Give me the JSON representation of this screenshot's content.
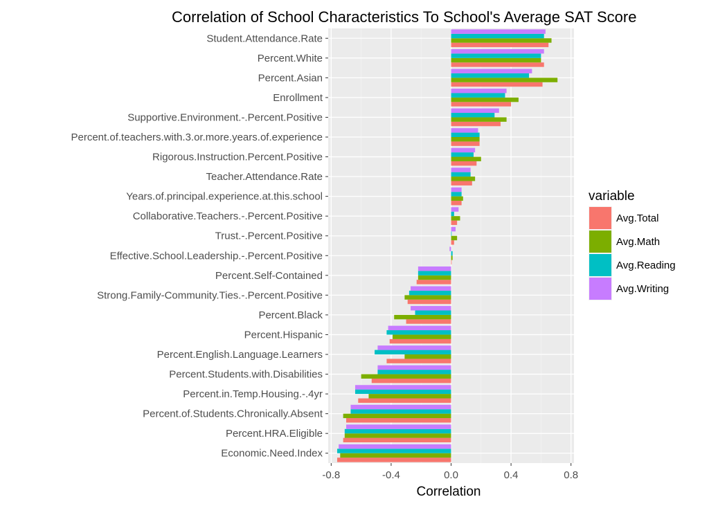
{
  "chart_data": {
    "type": "bar",
    "orientation": "horizontal",
    "title": "Correlation of School Characteristics To School's Average SAT Score",
    "xlabel": "Correlation",
    "ylabel": "",
    "xlim": [
      -0.82,
      0.82
    ],
    "xticks": [
      -0.8,
      -0.4,
      0.0,
      0.4,
      0.8
    ],
    "xtick_labels": [
      "-0.8",
      "-0.4",
      "0.0",
      "0.4",
      "0.8"
    ],
    "grid": true,
    "legend": {
      "title": "variable",
      "position": "right"
    },
    "categories": [
      "Student.Attendance.Rate",
      "Percent.White",
      "Percent.Asian",
      "Enrollment",
      "Supportive.Environment.-.Percent.Positive",
      "Percent.of.teachers.with.3.or.more.years.of.experience",
      "Rigorous.Instruction.Percent.Positive",
      "Teacher.Attendance.Rate",
      "Years.of.principal.experience.at.this.school",
      "Collaborative.Teachers.-.Percent.Positive",
      "Trust.-.Percent.Positive",
      "Effective.School.Leadership.-.Percent.Positive",
      "Percent.Self-Contained",
      "Strong.Family-Community.Ties.-.Percent.Positive",
      "Percent.Black",
      "Percent.Hispanic",
      "Percent.English.Language.Learners",
      "Percent.Students.with.Disabilities",
      "Percent.in.Temp.Housing.-.4yr",
      "Percent.of.Students.Chronically.Absent",
      "Percent.HRA.Eligible",
      "Economic.Need.Index"
    ],
    "series": [
      {
        "name": "Avg.Total",
        "color": "#F8766D",
        "values": [
          0.65,
          0.62,
          0.61,
          0.4,
          0.33,
          0.19,
          0.17,
          0.14,
          0.07,
          0.04,
          0.02,
          0.0,
          -0.23,
          -0.29,
          -0.3,
          -0.41,
          -0.43,
          -0.53,
          -0.62,
          -0.7,
          -0.72,
          -0.76
        ]
      },
      {
        "name": "Avg.Math",
        "color": "#7CAE00",
        "values": [
          0.67,
          0.6,
          0.71,
          0.45,
          0.37,
          0.19,
          0.2,
          0.16,
          0.08,
          0.06,
          0.04,
          0.01,
          -0.22,
          -0.31,
          -0.38,
          -0.39,
          -0.31,
          -0.6,
          -0.55,
          -0.72,
          -0.71,
          -0.74
        ]
      },
      {
        "name": "Avg.Reading",
        "color": "#00BFC4",
        "values": [
          0.62,
          0.6,
          0.52,
          0.36,
          0.29,
          0.19,
          0.15,
          0.13,
          0.07,
          0.02,
          0.0,
          0.01,
          -0.22,
          -0.28,
          -0.24,
          -0.43,
          -0.51,
          -0.49,
          -0.64,
          -0.67,
          -0.71,
          -0.76
        ]
      },
      {
        "name": "Avg.Writing",
        "color": "#C77CFF",
        "values": [
          0.63,
          0.62,
          0.54,
          0.37,
          0.32,
          0.18,
          0.16,
          0.13,
          0.07,
          0.05,
          0.03,
          -0.01,
          -0.22,
          -0.27,
          -0.27,
          -0.42,
          -0.49,
          -0.49,
          -0.64,
          -0.67,
          -0.7,
          -0.75
        ]
      }
    ]
  }
}
